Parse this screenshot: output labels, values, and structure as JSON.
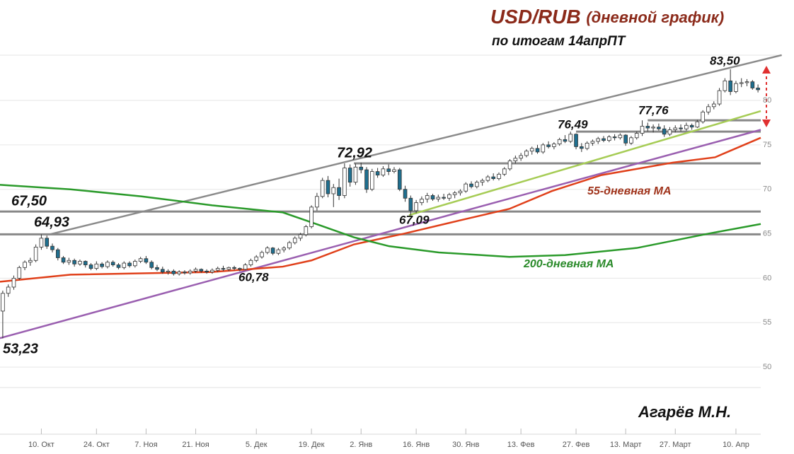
{
  "chart_data": {
    "type": "candlestick",
    "title": "USD/RUB",
    "title_note": "(дневной график)",
    "subtitle": "по итогам 14апрПТ",
    "author": "Агарёв М.Н.",
    "ylim": [
      47.7,
      87.6
    ],
    "yticks": [
      50,
      55,
      60,
      65,
      70,
      75,
      80
    ],
    "grid": true,
    "up_color": "#ffffff",
    "down_color": "#1f6f8f",
    "outline": "#333333",
    "categories": [
      null,
      null,
      null,
      null,
      null,
      null,
      null,
      "10. Окт",
      null,
      null,
      null,
      null,
      null,
      null,
      null,
      null,
      null,
      "24. Окт",
      null,
      null,
      null,
      null,
      null,
      null,
      null,
      null,
      "7. Ноя",
      null,
      null,
      null,
      null,
      null,
      null,
      null,
      null,
      "21. Ноя",
      null,
      null,
      null,
      null,
      null,
      null,
      null,
      null,
      null,
      null,
      "5. Дек",
      null,
      null,
      null,
      null,
      null,
      null,
      null,
      null,
      null,
      "19. Дек",
      null,
      null,
      null,
      null,
      null,
      null,
      null,
      null,
      "2. Янв",
      null,
      null,
      null,
      null,
      null,
      null,
      null,
      null,
      null,
      "16. Янв",
      null,
      null,
      null,
      null,
      null,
      null,
      null,
      null,
      "30. Янв",
      null,
      null,
      null,
      null,
      null,
      null,
      null,
      null,
      null,
      "13. Фев",
      null,
      null,
      null,
      null,
      null,
      null,
      null,
      null,
      null,
      "27. Фев",
      null,
      null,
      null,
      null,
      null,
      null,
      null,
      null,
      "13. Март",
      null,
      null,
      null,
      null,
      null,
      null,
      null,
      null,
      "27. Март",
      null,
      null,
      null,
      null,
      null,
      null,
      null,
      null,
      null,
      null,
      "10. Апр",
      null,
      null,
      null,
      null
    ],
    "candles": [
      [
        56.3,
        58.6,
        53.23,
        58.3
      ],
      [
        58.3,
        59.3,
        57.9,
        59.0
      ],
      [
        59.0,
        60.3,
        58.7,
        60.0
      ],
      [
        60.0,
        61.4,
        59.8,
        61.2
      ],
      [
        61.2,
        62.0,
        60.9,
        61.8
      ],
      [
        61.8,
        62.3,
        61.4,
        62.0
      ],
      [
        62.0,
        63.8,
        61.8,
        63.5
      ],
      [
        63.5,
        64.93,
        63.2,
        64.5
      ],
      [
        64.5,
        64.8,
        63.3,
        63.6
      ],
      [
        63.6,
        63.9,
        62.9,
        63.2
      ],
      [
        63.2,
        63.4,
        62.0,
        62.3
      ],
      [
        62.3,
        62.5,
        61.6,
        61.8
      ],
      [
        61.8,
        62.3,
        61.5,
        62.0
      ],
      [
        62.0,
        62.2,
        61.3,
        61.6
      ],
      [
        61.6,
        62.1,
        61.4,
        61.9
      ],
      [
        61.9,
        62.0,
        61.2,
        61.5
      ],
      [
        61.5,
        61.7,
        60.9,
        61.1
      ],
      [
        61.1,
        61.9,
        60.9,
        61.6
      ],
      [
        61.6,
        61.8,
        61.1,
        61.3
      ],
      [
        61.3,
        62.0,
        61.1,
        61.8
      ],
      [
        61.8,
        62.0,
        61.3,
        61.5
      ],
      [
        61.5,
        61.7,
        61.0,
        61.2
      ],
      [
        61.2,
        61.9,
        61.0,
        61.7
      ],
      [
        61.7,
        61.9,
        61.2,
        61.4
      ],
      [
        61.4,
        62.1,
        61.2,
        61.9
      ],
      [
        61.9,
        62.4,
        61.7,
        62.2
      ],
      [
        62.2,
        62.5,
        61.6,
        61.8
      ],
      [
        61.8,
        62.0,
        61.0,
        61.2
      ],
      [
        61.2,
        61.5,
        60.8,
        61.0
      ],
      [
        61.0,
        61.3,
        60.5,
        60.7
      ],
      [
        60.7,
        61.0,
        60.4,
        60.8
      ],
      [
        60.8,
        61.0,
        60.3,
        60.5
      ],
      [
        60.5,
        60.9,
        60.3,
        60.7
      ],
      [
        60.7,
        60.9,
        60.4,
        60.6
      ],
      [
        60.6,
        61.0,
        60.4,
        60.8
      ],
      [
        60.8,
        61.2,
        60.6,
        61.0
      ],
      [
        61.0,
        61.1,
        60.6,
        60.8
      ],
      [
        60.8,
        61.0,
        60.5,
        60.7
      ],
      [
        60.7,
        61.1,
        60.5,
        60.9
      ],
      [
        60.9,
        61.3,
        60.7,
        61.1
      ],
      [
        61.1,
        61.4,
        60.8,
        61.0
      ],
      [
        61.0,
        61.3,
        60.8,
        61.2
      ],
      [
        61.2,
        61.4,
        60.9,
        61.1
      ],
      [
        61.1,
        61.2,
        60.78,
        61.0
      ],
      [
        61.0,
        61.7,
        60.9,
        61.5
      ],
      [
        61.5,
        62.2,
        61.3,
        62.0
      ],
      [
        62.0,
        62.6,
        61.8,
        62.4
      ],
      [
        62.4,
        63.1,
        62.2,
        62.9
      ],
      [
        62.9,
        63.6,
        62.7,
        63.4
      ],
      [
        63.4,
        63.5,
        62.6,
        62.8
      ],
      [
        62.8,
        63.4,
        62.6,
        63.2
      ],
      [
        63.2,
        63.6,
        62.9,
        63.4
      ],
      [
        63.4,
        64.2,
        63.2,
        64.0
      ],
      [
        64.0,
        64.7,
        63.8,
        64.5
      ],
      [
        64.5,
        65.1,
        64.2,
        64.9
      ],
      [
        64.9,
        66.0,
        64.7,
        65.8
      ],
      [
        65.8,
        68.2,
        65.6,
        68.0
      ],
      [
        68.0,
        69.6,
        67.6,
        69.2
      ],
      [
        69.2,
        71.3,
        69.0,
        71.0
      ],
      [
        71.0,
        71.5,
        69.1,
        69.5
      ],
      [
        69.5,
        70.6,
        68.0,
        70.2
      ],
      [
        70.2,
        71.2,
        68.8,
        69.3
      ],
      [
        69.3,
        72.92,
        69.0,
        72.4
      ],
      [
        72.4,
        72.8,
        70.3,
        70.8
      ],
      [
        70.8,
        72.9,
        70.5,
        72.5
      ],
      [
        72.5,
        73.0,
        71.8,
        72.2
      ],
      [
        72.2,
        72.5,
        69.6,
        70.0
      ],
      [
        70.0,
        72.3,
        69.8,
        72.0
      ],
      [
        72.0,
        72.4,
        71.3,
        71.6
      ],
      [
        71.6,
        72.6,
        71.4,
        72.3
      ],
      [
        72.3,
        72.8,
        71.6,
        72.0
      ],
      [
        72.0,
        72.5,
        71.8,
        72.2
      ],
      [
        72.2,
        72.4,
        69.8,
        70.0
      ],
      [
        70.0,
        70.4,
        68.6,
        69.0
      ],
      [
        69.0,
        69.3,
        67.09,
        67.6
      ],
      [
        67.6,
        68.8,
        67.3,
        68.5
      ],
      [
        68.5,
        69.2,
        68.2,
        68.9
      ],
      [
        68.9,
        69.6,
        68.5,
        69.3
      ],
      [
        69.3,
        69.5,
        68.7,
        68.9
      ],
      [
        68.9,
        69.4,
        68.6,
        69.1
      ],
      [
        69.1,
        69.5,
        68.8,
        69.0
      ],
      [
        69.0,
        69.6,
        68.7,
        69.4
      ],
      [
        69.4,
        69.8,
        69.0,
        69.6
      ],
      [
        69.6,
        70.0,
        69.3,
        69.8
      ],
      [
        69.8,
        70.8,
        69.6,
        70.6
      ],
      [
        70.6,
        70.9,
        70.1,
        70.3
      ],
      [
        70.3,
        71.0,
        70.1,
        70.8
      ],
      [
        70.8,
        71.2,
        70.4,
        71.0
      ],
      [
        71.0,
        71.6,
        70.8,
        71.4
      ],
      [
        71.4,
        71.8,
        71.0,
        71.2
      ],
      [
        71.2,
        71.9,
        71.0,
        71.7
      ],
      [
        71.7,
        72.5,
        71.5,
        72.3
      ],
      [
        72.3,
        73.4,
        72.1,
        73.2
      ],
      [
        73.2,
        73.8,
        72.9,
        73.5
      ],
      [
        73.5,
        74.1,
        73.2,
        73.8
      ],
      [
        73.8,
        74.5,
        73.6,
        74.3
      ],
      [
        74.3,
        74.8,
        73.9,
        74.6
      ],
      [
        74.6,
        75.0,
        74.0,
        74.2
      ],
      [
        74.2,
        75.2,
        74.0,
        75.0
      ],
      [
        75.0,
        75.4,
        74.6,
        74.8
      ],
      [
        74.8,
        75.3,
        74.5,
        75.1
      ],
      [
        75.1,
        75.8,
        74.9,
        75.6
      ],
      [
        75.6,
        76.1,
        75.2,
        75.4
      ],
      [
        75.4,
        76.49,
        75.2,
        76.2
      ],
      [
        76.2,
        76.3,
        74.5,
        74.8
      ],
      [
        74.8,
        75.2,
        74.2,
        74.6
      ],
      [
        74.6,
        75.4,
        74.4,
        75.2
      ],
      [
        75.2,
        75.6,
        74.9,
        75.4
      ],
      [
        75.4,
        75.9,
        75.1,
        75.7
      ],
      [
        75.7,
        76.0,
        75.3,
        75.5
      ],
      [
        75.5,
        76.1,
        75.3,
        75.9
      ],
      [
        75.9,
        76.2,
        75.5,
        75.8
      ],
      [
        75.8,
        76.3,
        75.6,
        76.1
      ],
      [
        76.1,
        76.2,
        74.9,
        75.2
      ],
      [
        75.2,
        76.0,
        75.0,
        75.8
      ],
      [
        75.8,
        76.5,
        75.6,
        76.3
      ],
      [
        76.3,
        77.76,
        76.0,
        77.1
      ],
      [
        77.1,
        77.5,
        76.5,
        76.9
      ],
      [
        76.9,
        77.3,
        76.4,
        77.0
      ],
      [
        77.0,
        77.4,
        76.6,
        76.8
      ],
      [
        76.8,
        77.2,
        75.9,
        76.2
      ],
      [
        76.2,
        77.0,
        76.0,
        76.7
      ],
      [
        76.7,
        77.2,
        76.4,
        76.9
      ],
      [
        76.9,
        77.3,
        76.5,
        76.8
      ],
      [
        76.8,
        77.5,
        76.6,
        77.2
      ],
      [
        77.2,
        77.4,
        76.7,
        77.0
      ],
      [
        77.0,
        77.8,
        76.9,
        77.6
      ],
      [
        77.6,
        78.9,
        77.4,
        78.7
      ],
      [
        78.7,
        79.6,
        78.4,
        79.3
      ],
      [
        79.3,
        79.9,
        79.0,
        79.6
      ],
      [
        79.6,
        81.4,
        79.4,
        81.1
      ],
      [
        81.1,
        82.5,
        80.9,
        82.2
      ],
      [
        82.2,
        83.5,
        80.6,
        81.0
      ],
      [
        81.0,
        82.2,
        80.8,
        81.9
      ],
      [
        81.9,
        82.5,
        81.5,
        82.0
      ],
      [
        82.0,
        82.4,
        81.6,
        82.1
      ],
      [
        82.1,
        82.3,
        81.2,
        81.4
      ],
      [
        81.4,
        81.8,
        80.9,
        81.2
      ]
    ],
    "levels": [
      {
        "value": 67.5,
        "from": -0.5,
        "color": "#888888"
      },
      {
        "value": 64.93,
        "from": -0.5,
        "color": "#888888"
      },
      {
        "value": 72.92,
        "from": 63.7,
        "color": "#888888"
      },
      {
        "value": 76.49,
        "from": 104,
        "color": "#888888"
      },
      {
        "value": 77.76,
        "from": 117,
        "color": "#888888"
      }
    ],
    "lines": [
      {
        "color": "#8a8a8a",
        "points": [
          [
            8.5,
            64.93
          ],
          [
            141.3,
            85.1
          ]
        ]
      },
      {
        "color": "#9a5fb0",
        "points": [
          [
            -0.5,
            53.26
          ],
          [
            137.5,
            76.7
          ]
        ]
      },
      {
        "color": "#a6cc55",
        "points": [
          [
            73.7,
            67.09
          ],
          [
            137.5,
            78.8
          ]
        ]
      },
      {
        "name": "55-дневная MA",
        "color": "#e0401a",
        "points": [
          [
            -0.5,
            59.6
          ],
          [
            12.3,
            60.4
          ],
          [
            38,
            60.7
          ],
          [
            50.8,
            61.3
          ],
          [
            56,
            62
          ],
          [
            63.7,
            63.8
          ],
          [
            72.7,
            65
          ],
          [
            82.9,
            66.5
          ],
          [
            91.9,
            67.8
          ],
          [
            99.6,
            69.8
          ],
          [
            108.6,
            71.6
          ],
          [
            121.5,
            73
          ],
          [
            129.2,
            73.6
          ],
          [
            137.5,
            75.8
          ]
        ]
      },
      {
        "name": "200-дневная MA",
        "color": "#2a9a2a",
        "points": [
          [
            -0.5,
            70.5
          ],
          [
            12.3,
            70
          ],
          [
            25.2,
            69.2
          ],
          [
            38,
            68.2
          ],
          [
            50.8,
            67.4
          ],
          [
            57.3,
            66
          ],
          [
            63.7,
            64.6
          ],
          [
            70.1,
            63.6
          ],
          [
            79.1,
            62.9
          ],
          [
            91.9,
            62.4
          ],
          [
            102,
            62.6
          ],
          [
            115,
            63.4
          ],
          [
            127.9,
            65
          ],
          [
            137.5,
            66.1
          ]
        ]
      }
    ],
    "annotations": [
      {
        "value": 67.5,
        "label": "67,50"
      },
      {
        "value": 64.93,
        "label": "64,93"
      },
      {
        "value": 53.23,
        "label": "53,23"
      },
      {
        "value": 60.78,
        "label": "60,78"
      },
      {
        "value": 72.92,
        "label": "72,92"
      },
      {
        "value": 67.09,
        "label": "67,09"
      },
      {
        "value": 76.49,
        "label": "76,49"
      },
      {
        "value": 77.76,
        "label": "77,76"
      },
      {
        "value": 83.5,
        "label": "83,50"
      }
    ]
  }
}
